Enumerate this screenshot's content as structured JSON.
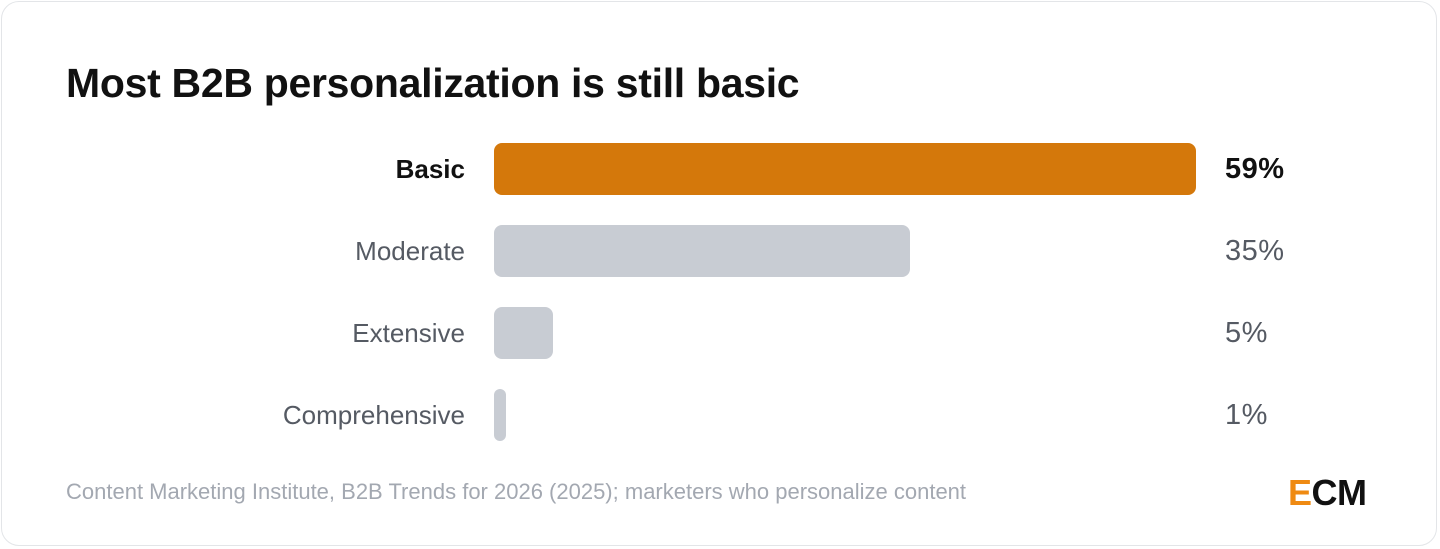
{
  "chart_data": {
    "type": "bar",
    "orientation": "horizontal",
    "title": "Most B2B personalization is still basic",
    "categories": [
      "Basic",
      "Moderate",
      "Extensive",
      "Comprehensive"
    ],
    "values": [
      59,
      35,
      5,
      1
    ],
    "value_labels": [
      "59%",
      "35%",
      "5%",
      "1%"
    ],
    "unit": "%",
    "highlight_index": 0,
    "colors": {
      "highlight": "#d4780b",
      "default": "#c8ccd3"
    },
    "xlim": [
      0,
      59
    ],
    "grid": false,
    "legend": "none",
    "source": "Content Marketing Institute, B2B Trends for 2026 (2025); marketers who personalize content"
  },
  "brand": {
    "logo_text": "ECM",
    "logo_accent": "E",
    "logo_rest": "CM",
    "accent_color": "#ef8a12"
  }
}
